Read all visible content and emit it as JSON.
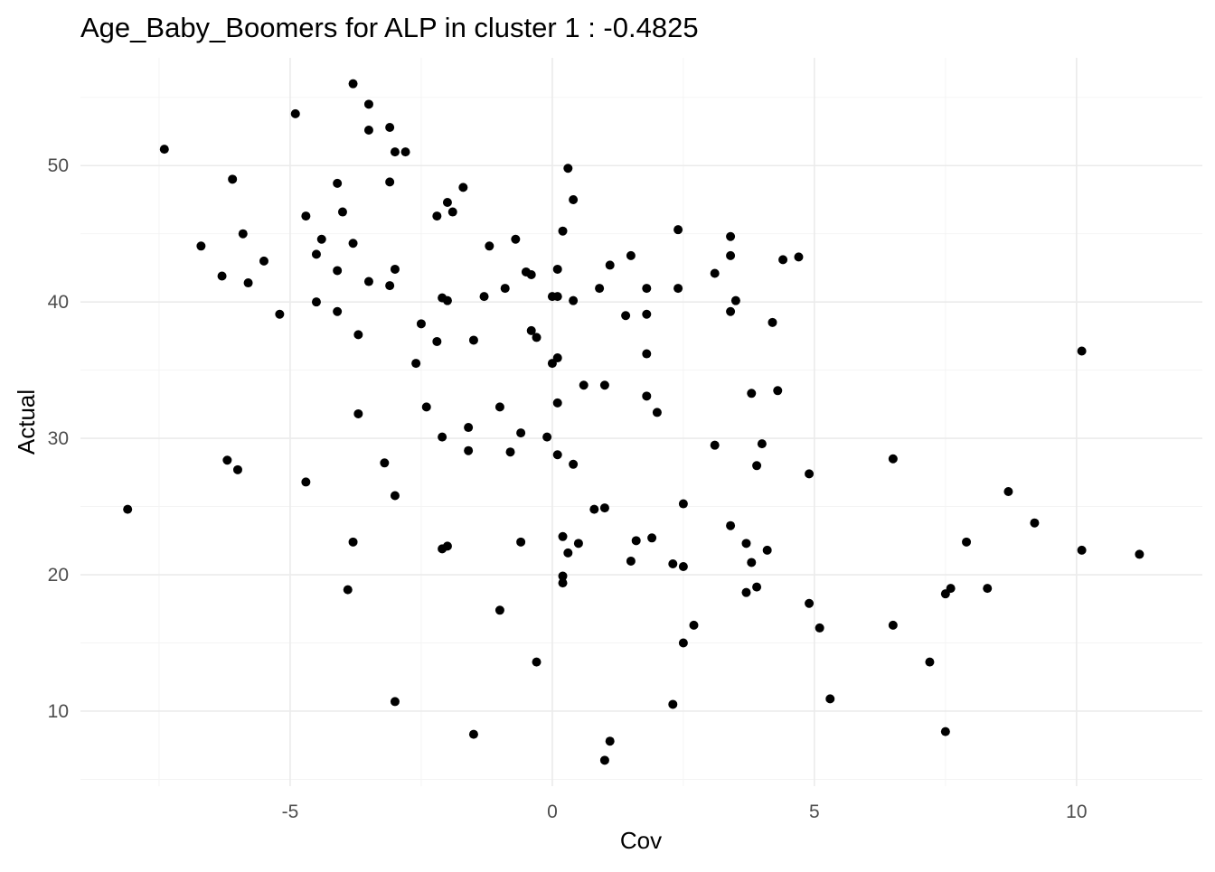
{
  "chart_data": {
    "type": "scatter",
    "title": "Age_Baby_Boomers for ALP in cluster 1 : -0.4825",
    "xlabel": "Cov",
    "ylabel": "Actual",
    "xlim": [
      -9.0,
      12.4
    ],
    "ylim": [
      4.5,
      57.9
    ],
    "x_ticks": [
      -5,
      0,
      5,
      10
    ],
    "y_ticks": [
      10,
      20,
      30,
      40,
      50
    ],
    "x_tick_labels": [
      "-5",
      "0",
      "5",
      "10"
    ],
    "y_tick_labels": [
      "10",
      "20",
      "30",
      "40",
      "50"
    ],
    "grid": true,
    "legend": "none",
    "point_color": "#000000",
    "points": [
      [
        -8.1,
        24.8
      ],
      [
        -7.4,
        51.2
      ],
      [
        -6.7,
        44.1
      ],
      [
        -6.3,
        41.9
      ],
      [
        -6.1,
        49.0
      ],
      [
        -6.2,
        28.4
      ],
      [
        -6.0,
        27.7
      ],
      [
        -5.9,
        45.0
      ],
      [
        -5.8,
        41.4
      ],
      [
        -5.5,
        43.0
      ],
      [
        -5.2,
        39.1
      ],
      [
        -4.9,
        53.8
      ],
      [
        -4.7,
        46.3
      ],
      [
        -4.7,
        26.8
      ],
      [
        -4.5,
        43.5
      ],
      [
        -4.5,
        40.0
      ],
      [
        -4.4,
        44.6
      ],
      [
        -4.1,
        48.7
      ],
      [
        -4.1,
        42.3
      ],
      [
        -4.1,
        39.3
      ],
      [
        -4.0,
        46.6
      ],
      [
        -3.9,
        18.9
      ],
      [
        -3.8,
        56.0
      ],
      [
        -3.8,
        44.3
      ],
      [
        -3.8,
        22.4
      ],
      [
        -3.7,
        37.6
      ],
      [
        -3.7,
        31.8
      ],
      [
        -3.5,
        54.5
      ],
      [
        -3.5,
        52.6
      ],
      [
        -3.5,
        41.5
      ],
      [
        -3.2,
        28.2
      ],
      [
        -3.1,
        48.8
      ],
      [
        -3.1,
        41.2
      ],
      [
        -3.1,
        52.8
      ],
      [
        -3.0,
        51.0
      ],
      [
        -3.0,
        42.4
      ],
      [
        -3.0,
        25.8
      ],
      [
        -3.0,
        10.7
      ],
      [
        -2.8,
        51.0
      ],
      [
        -2.6,
        35.5
      ],
      [
        -2.5,
        38.4
      ],
      [
        -2.4,
        32.3
      ],
      [
        -2.2,
        46.3
      ],
      [
        -2.2,
        37.1
      ],
      [
        -2.1,
        40.3
      ],
      [
        -2.0,
        40.1
      ],
      [
        -2.1,
        30.1
      ],
      [
        -2.1,
        21.9
      ],
      [
        -2.0,
        22.1
      ],
      [
        -2.0,
        47.3
      ],
      [
        -1.9,
        46.6
      ],
      [
        -1.7,
        48.4
      ],
      [
        -1.6,
        30.8
      ],
      [
        -1.6,
        29.1
      ],
      [
        -1.5,
        37.2
      ],
      [
        -1.5,
        8.3
      ],
      [
        -1.3,
        40.4
      ],
      [
        -1.2,
        44.1
      ],
      [
        -1.0,
        32.3
      ],
      [
        -1.0,
        17.4
      ],
      [
        -0.9,
        41.0
      ],
      [
        -0.8,
        29.0
      ],
      [
        -0.7,
        44.6
      ],
      [
        -0.6,
        30.4
      ],
      [
        -0.6,
        22.4
      ],
      [
        -0.5,
        42.2
      ],
      [
        -0.4,
        42.0
      ],
      [
        -0.4,
        37.9
      ],
      [
        -0.3,
        37.4
      ],
      [
        -0.3,
        13.6
      ],
      [
        -0.1,
        30.1
      ],
      [
        0.0,
        40.4
      ],
      [
        0.0,
        35.5
      ],
      [
        0.1,
        35.9
      ],
      [
        0.1,
        42.4
      ],
      [
        0.1,
        40.4
      ],
      [
        0.1,
        32.6
      ],
      [
        0.1,
        28.8
      ],
      [
        0.2,
        45.2
      ],
      [
        0.2,
        22.8
      ],
      [
        0.2,
        19.9
      ],
      [
        0.2,
        19.4
      ],
      [
        0.3,
        49.8
      ],
      [
        0.3,
        21.6
      ],
      [
        0.4,
        47.5
      ],
      [
        0.4,
        40.1
      ],
      [
        0.4,
        28.1
      ],
      [
        0.5,
        22.3
      ],
      [
        0.6,
        33.9
      ],
      [
        0.8,
        24.8
      ],
      [
        0.9,
        41.0
      ],
      [
        1.0,
        33.9
      ],
      [
        1.0,
        6.4
      ],
      [
        1.0,
        24.9
      ],
      [
        1.1,
        42.7
      ],
      [
        1.1,
        7.8
      ],
      [
        1.4,
        39.0
      ],
      [
        1.5,
        21.0
      ],
      [
        1.5,
        43.4
      ],
      [
        1.6,
        22.5
      ],
      [
        1.8,
        39.1
      ],
      [
        1.8,
        36.2
      ],
      [
        1.8,
        33.1
      ],
      [
        1.8,
        41.0
      ],
      [
        1.9,
        22.7
      ],
      [
        2.0,
        31.9
      ],
      [
        2.3,
        20.8
      ],
      [
        2.3,
        10.5
      ],
      [
        2.4,
        45.3
      ],
      [
        2.4,
        41.0
      ],
      [
        2.5,
        25.2
      ],
      [
        2.5,
        20.6
      ],
      [
        2.5,
        15.0
      ],
      [
        2.7,
        16.3
      ],
      [
        3.1,
        42.1
      ],
      [
        3.1,
        29.5
      ],
      [
        3.4,
        44.8
      ],
      [
        3.4,
        43.4
      ],
      [
        3.4,
        39.3
      ],
      [
        3.4,
        23.6
      ],
      [
        3.5,
        40.1
      ],
      [
        3.7,
        22.3
      ],
      [
        3.7,
        18.7
      ],
      [
        3.8,
        33.3
      ],
      [
        3.8,
        20.9
      ],
      [
        3.9,
        28.0
      ],
      [
        3.9,
        19.1
      ],
      [
        4.0,
        29.6
      ],
      [
        4.1,
        21.8
      ],
      [
        4.2,
        38.5
      ],
      [
        4.3,
        33.5
      ],
      [
        4.4,
        43.1
      ],
      [
        4.7,
        43.3
      ],
      [
        4.9,
        27.4
      ],
      [
        4.9,
        17.9
      ],
      [
        5.1,
        16.1
      ],
      [
        5.3,
        10.9
      ],
      [
        6.5,
        28.5
      ],
      [
        6.5,
        16.3
      ],
      [
        7.2,
        13.6
      ],
      [
        7.5,
        18.6
      ],
      [
        7.5,
        8.5
      ],
      [
        7.6,
        19.0
      ],
      [
        7.9,
        22.4
      ],
      [
        8.3,
        19.0
      ],
      [
        8.7,
        26.1
      ],
      [
        9.2,
        23.8
      ],
      [
        10.1,
        36.4
      ],
      [
        10.1,
        21.8
      ],
      [
        11.2,
        21.5
      ]
    ]
  }
}
